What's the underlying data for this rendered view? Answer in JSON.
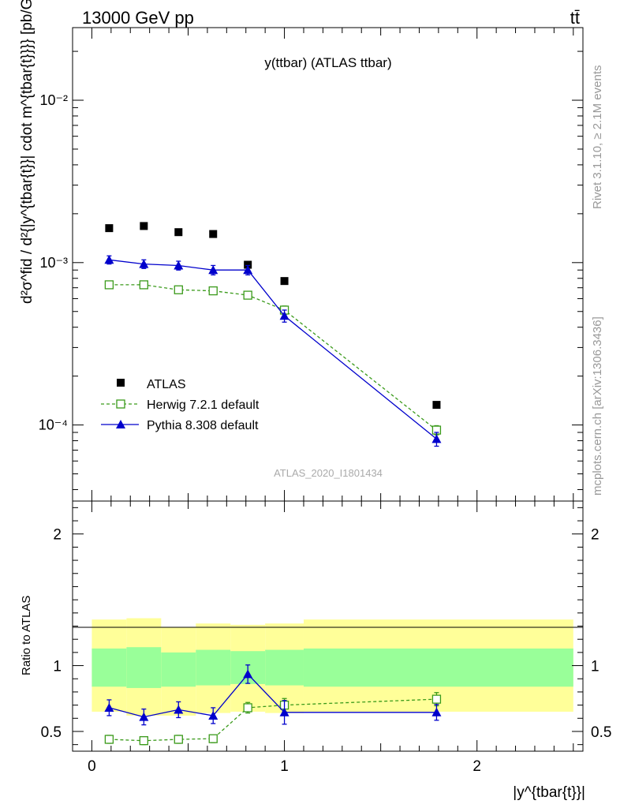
{
  "header": {
    "left": "13000 GeV pp",
    "right": "tt̄"
  },
  "side_labels": {
    "rivet": "Rivet 3.1.10, ≥ 2.1M events",
    "mcplots": "mcplots.cern.ch [arXiv:1306.3436]"
  },
  "chart_data": [
    {
      "type": "scatter",
      "panel": "main",
      "title": "y(ttbar) (ATLAS ttbar)",
      "ylabel": "d²σ^fid / d²{|y^{tbar{t}}| cdot m^{tbar{t}}}} [pb/GeV]",
      "yscale": "log",
      "xlim": [
        -0.1,
        2.55
      ],
      "ylim": [
        3.4e-05,
        0.028
      ],
      "y_ticks": [
        {
          "value": 0.0001,
          "label": "10⁻⁴"
        },
        {
          "value": 0.001,
          "label": "10⁻³"
        },
        {
          "value": 0.01,
          "label": "10⁻²"
        }
      ],
      "watermark": "ATLAS_2020_I1801434",
      "legend_position": "bottom-left",
      "series": [
        {
          "name": "ATLAS",
          "color": "#000000",
          "marker": "square",
          "x": [
            0.09,
            0.27,
            0.45,
            0.63,
            0.81,
            1.0,
            1.79
          ],
          "y": [
            0.00163,
            0.00168,
            0.00154,
            0.0015,
            0.00097,
            0.00077,
            0.000133
          ]
        },
        {
          "name": "Herwig 7.2.1 default",
          "color": "#3a9a1a",
          "marker": "open-square",
          "line": "dashed",
          "x": [
            0.09,
            0.27,
            0.45,
            0.63,
            0.81,
            1.0,
            1.79
          ],
          "y": [
            0.00073,
            0.00073,
            0.00068,
            0.00067,
            0.00063,
            0.00051,
            9.3e-05
          ],
          "yerr": [
            3e-05,
            3e-05,
            3e-05,
            3e-05,
            3e-05,
            3e-05,
            6e-06
          ]
        },
        {
          "name": "Pythia 8.308 default",
          "color": "#0000cc",
          "marker": "triangle",
          "line": "solid",
          "x": [
            0.09,
            0.27,
            0.45,
            0.63,
            0.81,
            1.0,
            1.79
          ],
          "y": [
            0.00104,
            0.00098,
            0.00096,
            0.0009,
            0.0009,
            0.00047,
            8.2e-05
          ],
          "yerr": [
            6e-05,
            6e-05,
            6e-05,
            6e-05,
            6e-05,
            4e-05,
            8e-06
          ]
        }
      ]
    },
    {
      "type": "scatter",
      "panel": "ratio",
      "ylabel": "Ratio to ATLAS",
      "xlabel": "|y^{tbar{t}}|",
      "xlim": [
        -0.1,
        2.55
      ],
      "ylim": [
        0.35,
        2.25
      ],
      "x_ticks": [
        {
          "value": 0,
          "label": "0"
        },
        {
          "value": 1,
          "label": "1"
        },
        {
          "value": 2,
          "label": "2"
        }
      ],
      "y_ticks": [
        {
          "value": 0.5,
          "label": "0.5"
        },
        {
          "value": 1,
          "label": "1"
        },
        {
          "value": 2,
          "label": "2"
        }
      ],
      "bands": {
        "bin_edges": [
          0.0,
          0.18,
          0.36,
          0.54,
          0.72,
          0.9,
          1.1,
          2.5
        ],
        "yellow_lo": [
          0.65,
          0.62,
          0.62,
          0.64,
          0.65,
          0.64,
          0.65
        ],
        "yellow_hi": [
          1.35,
          1.36,
          1.29,
          1.32,
          1.31,
          1.32,
          1.35
        ],
        "green_lo": [
          0.84,
          0.83,
          0.84,
          0.85,
          0.86,
          0.85,
          0.84
        ],
        "green_hi": [
          1.13,
          1.14,
          1.1,
          1.12,
          1.11,
          1.12,
          1.13
        ],
        "yellow_color": "#ffff99",
        "green_color": "#99ff99"
      },
      "series": [
        {
          "name": "Herwig 7.2.1 default",
          "color": "#3a9a1a",
          "marker": "open-square",
          "line": "dashed",
          "x": [
            0.09,
            0.27,
            0.45,
            0.63,
            0.81,
            1.0,
            1.79
          ],
          "y": [
            0.44,
            0.43,
            0.44,
            0.445,
            0.68,
            0.7,
            0.745
          ],
          "yerr": [
            0.03,
            0.03,
            0.03,
            0.03,
            0.04,
            0.05,
            0.05
          ]
        },
        {
          "name": "Pythia 8.308 default",
          "color": "#0000cc",
          "marker": "triangle",
          "line": "solid",
          "x": [
            0.09,
            0.27,
            0.45,
            0.63,
            0.81,
            1.0,
            1.79
          ],
          "y": [
            0.68,
            0.61,
            0.665,
            0.62,
            0.935,
            0.645,
            0.645
          ],
          "yerr": [
            0.06,
            0.06,
            0.06,
            0.06,
            0.07,
            0.09,
            0.06
          ]
        }
      ]
    }
  ]
}
